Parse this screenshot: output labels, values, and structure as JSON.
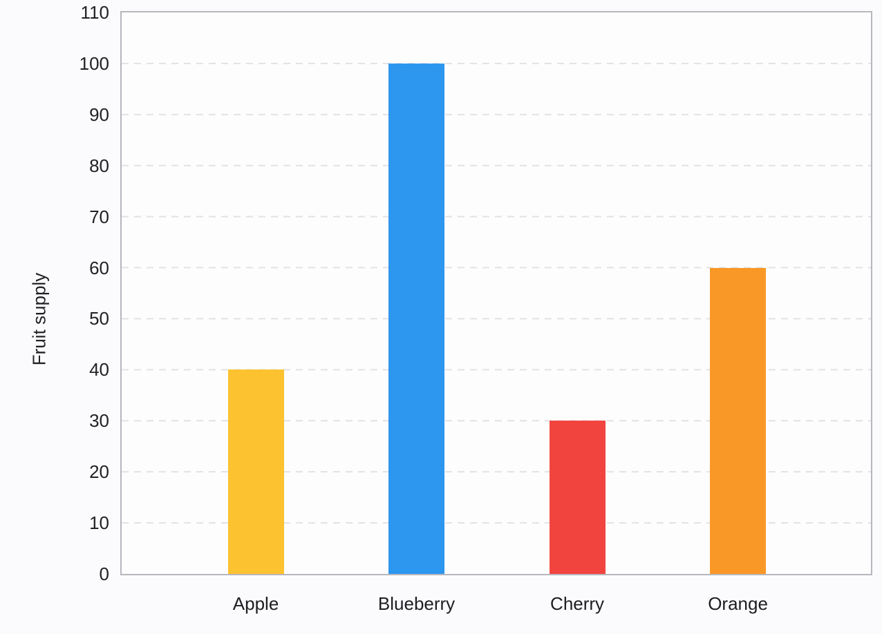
{
  "chart_data": {
    "type": "bar",
    "title": "",
    "xlabel": "",
    "ylabel": "Fruit supply",
    "categories": [
      "Apple",
      "Blueberry",
      "Cherry",
      "Orange"
    ],
    "values": [
      40,
      100,
      30,
      60
    ],
    "bar_colors": [
      "#fcc230",
      "#2d96ee",
      "#f2443f",
      "#fa9827"
    ],
    "ylim": [
      0,
      110
    ],
    "yticks": [
      0,
      10,
      20,
      30,
      40,
      50,
      60,
      70,
      80,
      90,
      100,
      110
    ],
    "grid": "dashed-horizontal",
    "grid_color": "#e2e2e4",
    "plot_border_color": "#b6b6bc",
    "legend": "none"
  }
}
